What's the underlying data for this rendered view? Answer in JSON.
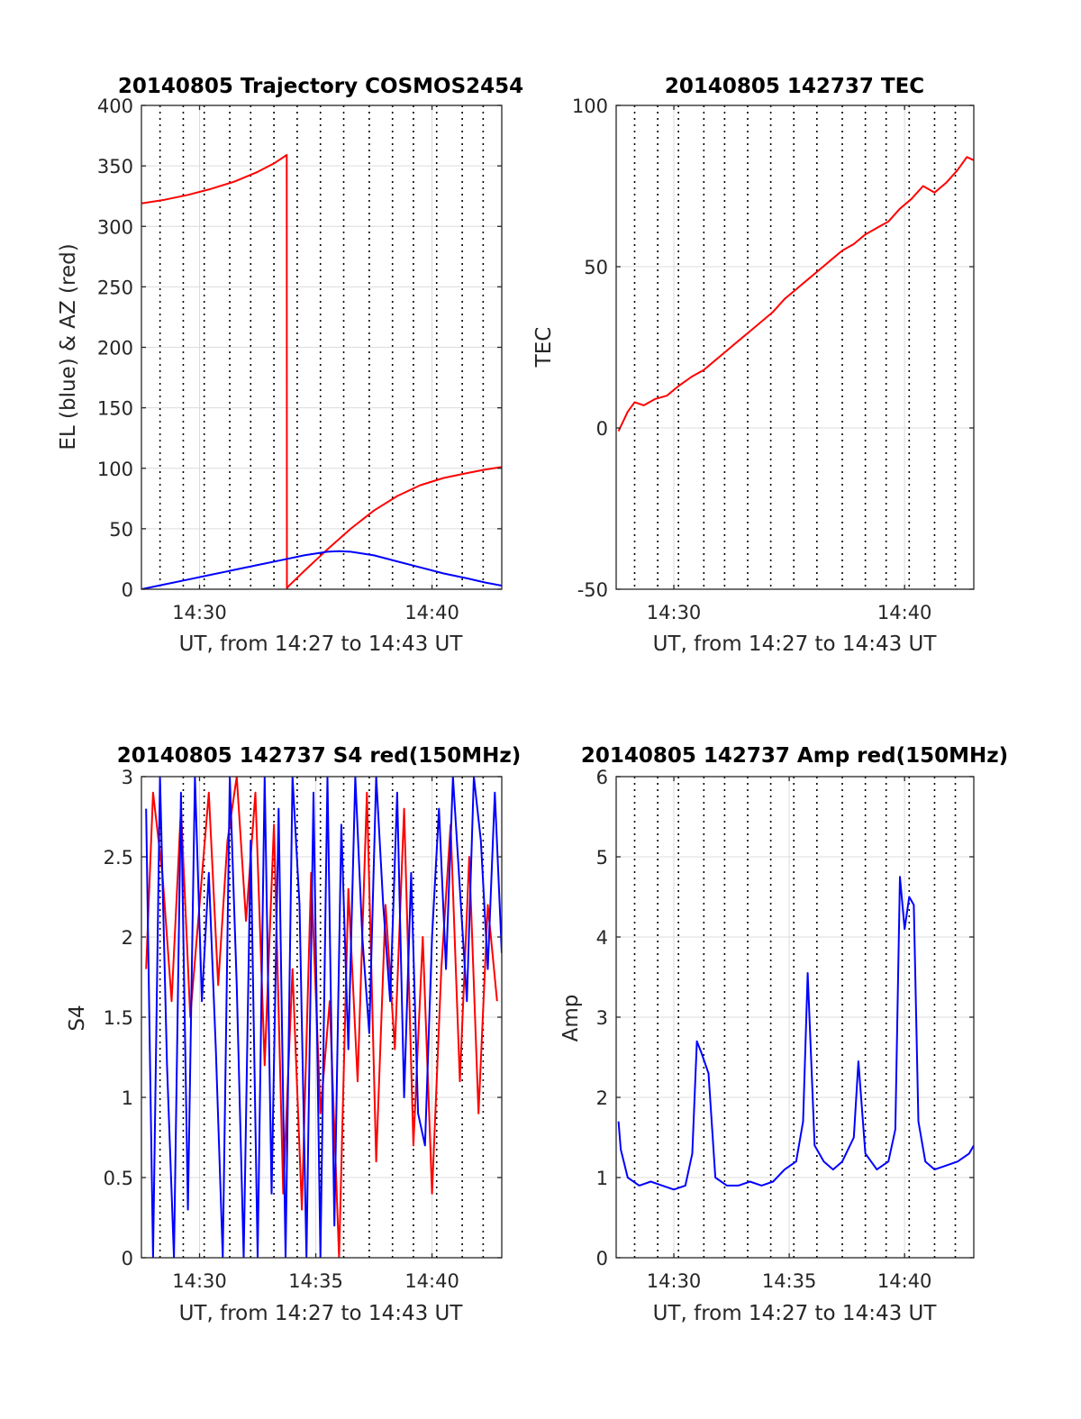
{
  "figure": {
    "background": "#ffffff",
    "grid_color": "#dcdcdc",
    "frame_color": "#262626",
    "marker_color": "#000000"
  },
  "chart_data": [
    {
      "type": "line",
      "title": "20140805 Trajectory COSMOS2454",
      "xlabel": "UT, from 14:27 to 14:43 UT",
      "ylabel": "EL (blue) & AZ (red)",
      "xlim": [
        27.5,
        43
      ],
      "ylim": [
        0,
        400
      ],
      "xticks": [
        30,
        40
      ],
      "xtick_labels": [
        "14:30",
        "14:40"
      ],
      "yticks": [
        0,
        50,
        100,
        150,
        200,
        250,
        300,
        350,
        400
      ],
      "ytick_labels": [
        "0",
        "50",
        "100",
        "150",
        "200",
        "250",
        "300",
        "350",
        "400"
      ],
      "grid": true,
      "event_markers_minutes": [
        28.3,
        29.3,
        30.2,
        31.3,
        32.2,
        33.2,
        34.2,
        35.2,
        36.2,
        37.3,
        38.3,
        39.2,
        40.2,
        41.3,
        42.2
      ],
      "series": [
        {
          "color": "#ff0000",
          "x": [
            27.5,
            28.5,
            29.5,
            30.5,
            31.5,
            32.5,
            33.2,
            33.75,
            33.76,
            33.8,
            34.5,
            35.5,
            36.5,
            37.5,
            38.5,
            39.5,
            40.5,
            41.5,
            42.3,
            43.0
          ],
          "y": [
            319,
            322,
            326,
            331,
            337,
            345,
            352,
            359,
            0,
            2,
            15,
            33,
            50,
            65,
            77,
            86,
            92,
            96,
            99,
            101
          ]
        },
        {
          "color": "#0000ff",
          "x": [
            27.5,
            28.5,
            29.5,
            30.5,
            31.5,
            32.5,
            33.5,
            34.5,
            35.5,
            36.0,
            36.5,
            37.5,
            38.5,
            39.5,
            40.5,
            41.5,
            42.3,
            43.0
          ],
          "y": [
            0,
            4,
            8,
            12,
            16,
            20,
            24,
            28,
            31,
            31.5,
            31,
            28,
            23,
            18,
            13,
            9,
            5.5,
            3
          ]
        }
      ]
    },
    {
      "type": "line",
      "title": "20140805 142737 TEC",
      "xlabel": "UT, from 14:27 to 14:43 UT",
      "ylabel": "TEC",
      "xlim": [
        27.5,
        43
      ],
      "ylim": [
        -50,
        100
      ],
      "xticks": [
        30,
        40
      ],
      "xtick_labels": [
        "14:30",
        "14:40"
      ],
      "yticks": [
        -50,
        0,
        50,
        100
      ],
      "ytick_labels": [
        "-50",
        "0",
        "50",
        "100"
      ],
      "grid": true,
      "event_markers_minutes": [
        28.3,
        29.3,
        30.2,
        31.3,
        32.2,
        33.2,
        34.2,
        35.2,
        36.2,
        37.3,
        38.3,
        39.2,
        40.2,
        41.3,
        42.2
      ],
      "series": [
        {
          "color": "#ff0000",
          "x": [
            27.6,
            28.0,
            28.3,
            28.7,
            29.2,
            29.7,
            30.2,
            30.8,
            31.3,
            31.8,
            32.3,
            32.8,
            33.3,
            33.8,
            34.3,
            34.8,
            35.3,
            35.8,
            36.3,
            36.8,
            37.3,
            37.8,
            38.3,
            38.8,
            39.3,
            39.8,
            40.3,
            40.8,
            41.3,
            41.8,
            42.3,
            42.7,
            43.0
          ],
          "y": [
            -1,
            5,
            8,
            7,
            9,
            10,
            13,
            16,
            18,
            21,
            24,
            27,
            30,
            33,
            36,
            40,
            43,
            46,
            49,
            52,
            55,
            57,
            60,
            62,
            64,
            68,
            71,
            75,
            73,
            76,
            80,
            84,
            83
          ]
        }
      ]
    },
    {
      "type": "line",
      "title": "20140805 142737 S4 red(150MHz)",
      "xlabel": "UT, from 14:27 to 14:43 UT",
      "ylabel": "S4",
      "xlim": [
        27.5,
        43
      ],
      "ylim": [
        0,
        3
      ],
      "xticks": [
        30,
        35,
        40
      ],
      "xtick_labels": [
        "14:30",
        "14:35",
        "14:40"
      ],
      "yticks": [
        0,
        0.5,
        1,
        1.5,
        2,
        2.5,
        3
      ],
      "ytick_labels": [
        "0",
        "0.5",
        "1",
        "1.5",
        "2",
        "2.5",
        "3"
      ],
      "grid": true,
      "event_markers_minutes": [
        28.3,
        29.3,
        30.2,
        31.3,
        32.2,
        33.2,
        34.2,
        35.2,
        36.2,
        37.3,
        38.3,
        39.2,
        40.2,
        41.3,
        42.2
      ],
      "series": [
        {
          "color": "#ff0000",
          "x": [
            27.7,
            28.0,
            28.4,
            28.8,
            29.2,
            29.6,
            30.0,
            30.4,
            30.8,
            31.2,
            31.6,
            32.0,
            32.4,
            32.8,
            33.2,
            33.6,
            34.0,
            34.4,
            34.8,
            35.2,
            35.6,
            36.0,
            36.4,
            36.8,
            37.2,
            37.6,
            38.0,
            38.4,
            38.8,
            39.2,
            39.6,
            40.0,
            40.4,
            40.8,
            41.2,
            41.6,
            42.0,
            42.4,
            42.8
          ],
          "y": [
            1.8,
            2.9,
            2.4,
            1.6,
            2.8,
            1.5,
            2.2,
            2.9,
            1.7,
            2.6,
            3.0,
            2.1,
            2.9,
            1.2,
            2.7,
            0.4,
            1.8,
            0.3,
            2.4,
            0.9,
            1.6,
            0.0,
            2.3,
            1.1,
            2.9,
            0.6,
            2.2,
            1.3,
            2.8,
            0.7,
            2.0,
            0.4,
            1.8,
            2.7,
            1.1,
            2.5,
            0.9,
            2.2,
            1.6
          ]
        },
        {
          "color": "#0000ff",
          "x": [
            27.7,
            28.0,
            28.3,
            28.6,
            28.9,
            29.2,
            29.5,
            29.8,
            30.1,
            30.4,
            30.7,
            31.0,
            31.3,
            31.6,
            31.9,
            32.2,
            32.5,
            32.8,
            33.1,
            33.4,
            33.7,
            34.0,
            34.3,
            34.6,
            34.9,
            35.2,
            35.5,
            35.8,
            36.1,
            36.4,
            36.7,
            37.0,
            37.3,
            37.6,
            37.9,
            38.2,
            38.5,
            38.8,
            39.1,
            39.4,
            39.7,
            40.0,
            40.3,
            40.6,
            40.9,
            41.2,
            41.5,
            41.8,
            42.1,
            42.4,
            42.7,
            43.0
          ],
          "y": [
            2.8,
            0.0,
            3.0,
            1.2,
            0.0,
            2.9,
            0.3,
            3.0,
            1.6,
            2.4,
            1.3,
            0.0,
            3.0,
            1.7,
            0.0,
            2.6,
            0.0,
            3.0,
            0.4,
            2.8,
            0.0,
            3.0,
            2.2,
            0.0,
            2.9,
            0.0,
            3.0,
            0.2,
            2.7,
            1.3,
            3.0,
            2.0,
            1.4,
            3.0,
            2.2,
            1.6,
            2.9,
            1.0,
            2.4,
            0.9,
            0.7,
            2.0,
            2.8,
            1.8,
            3.0,
            2.3,
            1.6,
            3.0,
            2.6,
            1.8,
            2.9,
            1.9
          ]
        }
      ]
    },
    {
      "type": "line",
      "title": "20140805 142737 Amp red(150MHz)",
      "xlabel": "UT, from 14:27 to 14:43 UT",
      "ylabel": "Amp",
      "xlim": [
        27.5,
        43
      ],
      "ylim": [
        0,
        6
      ],
      "xticks": [
        30,
        35,
        40
      ],
      "xtick_labels": [
        "14:30",
        "14:35",
        "14:40"
      ],
      "yticks": [
        0,
        1,
        2,
        3,
        4,
        5,
        6
      ],
      "ytick_labels": [
        "0",
        "1",
        "2",
        "3",
        "4",
        "5",
        "6"
      ],
      "grid": true,
      "event_markers_minutes": [
        28.3,
        29.3,
        30.2,
        31.3,
        32.2,
        33.2,
        34.2,
        35.2,
        36.2,
        37.3,
        38.3,
        39.2,
        40.2,
        41.3,
        42.2
      ],
      "series": [
        {
          "color": "#0000ff",
          "x": [
            27.6,
            27.7,
            28.0,
            28.5,
            29.0,
            29.5,
            30.0,
            30.5,
            30.8,
            31.0,
            31.2,
            31.5,
            31.8,
            32.3,
            32.8,
            33.3,
            33.8,
            34.3,
            34.8,
            35.3,
            35.6,
            35.8,
            36.1,
            36.5,
            36.9,
            37.3,
            37.8,
            38.0,
            38.3,
            38.8,
            39.3,
            39.6,
            39.8,
            40.0,
            40.2,
            40.4,
            40.6,
            40.9,
            41.3,
            41.8,
            42.3,
            42.8,
            43.0
          ],
          "y": [
            1.7,
            1.35,
            1.0,
            0.9,
            0.95,
            0.9,
            0.85,
            0.9,
            1.3,
            2.7,
            2.55,
            2.3,
            1.0,
            0.9,
            0.9,
            0.95,
            0.9,
            0.95,
            1.1,
            1.2,
            1.7,
            3.55,
            1.4,
            1.2,
            1.1,
            1.2,
            1.5,
            2.45,
            1.3,
            1.1,
            1.2,
            1.6,
            4.75,
            4.1,
            4.5,
            4.4,
            1.7,
            1.2,
            1.1,
            1.15,
            1.2,
            1.3,
            1.4
          ]
        }
      ]
    }
  ]
}
